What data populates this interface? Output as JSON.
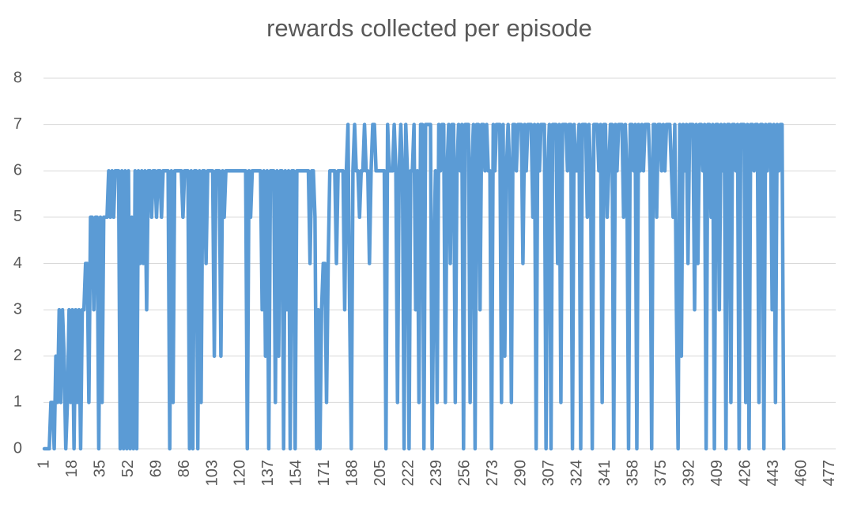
{
  "chart_data": {
    "type": "line",
    "title": "rewards collected per episode",
    "categories": [
      "1",
      null,
      null,
      null,
      null,
      null,
      null,
      null,
      null,
      null,
      null,
      null,
      null,
      null,
      null,
      null,
      null,
      "18",
      null,
      null,
      null,
      null,
      null,
      null,
      null,
      null,
      null,
      null,
      null,
      null,
      null,
      null,
      null,
      null,
      "35",
      null,
      null,
      null,
      null,
      null,
      null,
      null,
      null,
      null,
      null,
      null,
      null,
      null,
      null,
      null,
      null,
      "52",
      null,
      null,
      null,
      null,
      null,
      null,
      null,
      null,
      null,
      null,
      null,
      null,
      null,
      null,
      null,
      null,
      "69",
      null,
      null,
      null,
      null,
      null,
      null,
      null,
      null,
      null,
      null,
      null,
      null,
      null,
      null,
      null,
      null,
      "86",
      null,
      null,
      null,
      null,
      null,
      null,
      null,
      null,
      null,
      null,
      null,
      null,
      null,
      null,
      null,
      null,
      "103",
      null,
      null,
      null,
      null,
      null,
      null,
      null,
      null,
      null,
      null,
      null,
      null,
      null,
      null,
      null,
      null,
      "120",
      null,
      null,
      null,
      null,
      null,
      null,
      null,
      null,
      null,
      null,
      null,
      null,
      null,
      null,
      null,
      null,
      "137",
      null,
      null,
      null,
      null,
      null,
      null,
      null,
      null,
      null,
      null,
      null,
      null,
      null,
      null,
      null,
      null,
      "154",
      null,
      null,
      null,
      null,
      null,
      null,
      null,
      null,
      null,
      null,
      null,
      null,
      null,
      null,
      null,
      null,
      "171",
      null,
      null,
      null,
      null,
      null,
      null,
      null,
      null,
      null,
      null,
      null,
      null,
      null,
      null,
      null,
      null,
      "188",
      null,
      null,
      null,
      null,
      null,
      null,
      null,
      null,
      null,
      null,
      null,
      null,
      null,
      null,
      null,
      null,
      "205",
      null,
      null,
      null,
      null,
      null,
      null,
      null,
      null,
      null,
      null,
      null,
      null,
      null,
      null,
      null,
      null,
      "222",
      null,
      null,
      null,
      null,
      null,
      null,
      null,
      null,
      null,
      null,
      null,
      null,
      null,
      null,
      null,
      null,
      "239",
      null,
      null,
      null,
      null,
      null,
      null,
      null,
      null,
      null,
      null,
      null,
      null,
      null,
      null,
      null,
      null,
      "256",
      null,
      null,
      null,
      null,
      null,
      null,
      null,
      null,
      null,
      null,
      null,
      null,
      null,
      null,
      null,
      null,
      "273",
      null,
      null,
      null,
      null,
      null,
      null,
      null,
      null,
      null,
      null,
      null,
      null,
      null,
      null,
      null,
      null,
      "290",
      null,
      null,
      null,
      null,
      null,
      null,
      null,
      null,
      null,
      null,
      null,
      null,
      null,
      null,
      null,
      null,
      "307",
      null,
      null,
      null,
      null,
      null,
      null,
      null,
      null,
      null,
      null,
      null,
      null,
      null,
      null,
      null,
      null,
      "324",
      null,
      null,
      null,
      null,
      null,
      null,
      null,
      null,
      null,
      null,
      null,
      null,
      null,
      null,
      null,
      null,
      "341",
      null,
      null,
      null,
      null,
      null,
      null,
      null,
      null,
      null,
      null,
      null,
      null,
      null,
      null,
      null,
      null,
      "358",
      null,
      null,
      null,
      null,
      null,
      null,
      null,
      null,
      null,
      null,
      null,
      null,
      null,
      null,
      null,
      null,
      "375",
      null,
      null,
      null,
      null,
      null,
      null,
      null,
      null,
      null,
      null,
      null,
      null,
      null,
      null,
      null,
      null,
      "392",
      null,
      null,
      null,
      null,
      null,
      null,
      null,
      null,
      null,
      null,
      null,
      null,
      null,
      null,
      null,
      null,
      "409",
      null,
      null,
      null,
      null,
      null,
      null,
      null,
      null,
      null,
      null,
      null,
      null,
      null,
      null,
      null,
      null,
      "426",
      null,
      null,
      null,
      null,
      null,
      null,
      null,
      null,
      null,
      null,
      null,
      null,
      null,
      null,
      null,
      null,
      "443",
      null,
      null,
      null,
      null,
      null,
      null,
      null,
      null,
      null,
      null,
      null,
      null,
      null,
      null,
      null,
      null,
      "460",
      null,
      null,
      null,
      null,
      null,
      null,
      null,
      null,
      null,
      null,
      null,
      null,
      null,
      null,
      null,
      null,
      "477",
      null,
      null,
      null
    ],
    "values": [
      0,
      0,
      0,
      0,
      1,
      1,
      0,
      2,
      1,
      3,
      1,
      3,
      2,
      0,
      1,
      3,
      1,
      3,
      0,
      3,
      1,
      3,
      0,
      3,
      3,
      4,
      4,
      1,
      5,
      5,
      3,
      5,
      5,
      0,
      5,
      1,
      5,
      5,
      5,
      6,
      5,
      6,
      5,
      6,
      6,
      6,
      0,
      6,
      0,
      6,
      0,
      6,
      0,
      5,
      0,
      6,
      0,
      6,
      4,
      6,
      4,
      6,
      3,
      6,
      6,
      5,
      6,
      6,
      5,
      6,
      6,
      5,
      6,
      6,
      6,
      6,
      0,
      6,
      1,
      6,
      6,
      6,
      6,
      6,
      5,
      6,
      6,
      6,
      0,
      6,
      0,
      6,
      6,
      0,
      6,
      1,
      6,
      6,
      4,
      6,
      6,
      6,
      6,
      2,
      6,
      6,
      6,
      2,
      6,
      5,
      6,
      6,
      6,
      6,
      6,
      6,
      6,
      6,
      6,
      6,
      6,
      6,
      6,
      0,
      6,
      5,
      6,
      6,
      6,
      6,
      6,
      6,
      3,
      6,
      2,
      6,
      0,
      6,
      6,
      6,
      1,
      6,
      2,
      6,
      6,
      0,
      6,
      3,
      6,
      0,
      6,
      6,
      0,
      6,
      6,
      6,
      6,
      6,
      6,
      6,
      6,
      4,
      6,
      6,
      5,
      0,
      3,
      0,
      3,
      4,
      4,
      1,
      4,
      6,
      6,
      6,
      6,
      4,
      6,
      6,
      6,
      6,
      3,
      6,
      7,
      3,
      0,
      6,
      7,
      6,
      6,
      5,
      6,
      6,
      7,
      6,
      6,
      4,
      6,
      7,
      7,
      6,
      6,
      6,
      6,
      6,
      6,
      0,
      7,
      6,
      6,
      6,
      7,
      6,
      1,
      6,
      7,
      6,
      0,
      7,
      6,
      0,
      6,
      6,
      7,
      3,
      6,
      1,
      7,
      7,
      0,
      7,
      7,
      7,
      7,
      0,
      4,
      6,
      1,
      7,
      6,
      7,
      7,
      1,
      6,
      7,
      4,
      7,
      7,
      1,
      6,
      7,
      6,
      7,
      0,
      7,
      7,
      7,
      1,
      6,
      7,
      0,
      7,
      7,
      3,
      7,
      7,
      6,
      7,
      6,
      6,
      0,
      7,
      6,
      7,
      7,
      7,
      1,
      7,
      2,
      6,
      7,
      6,
      1,
      7,
      7,
      6,
      7,
      7,
      7,
      4,
      7,
      6,
      7,
      7,
      7,
      5,
      7,
      0,
      7,
      6,
      7,
      7,
      7,
      0,
      6,
      7,
      0,
      7,
      7,
      7,
      4,
      7,
      1,
      7,
      7,
      7,
      6,
      7,
      7,
      0,
      7,
      6,
      6,
      7,
      0,
      7,
      7,
      7,
      5,
      7,
      6,
      0,
      7,
      7,
      7,
      6,
      7,
      1,
      7,
      7,
      5,
      6,
      7,
      7,
      0,
      7,
      6,
      7,
      7,
      7,
      5,
      7,
      6,
      0,
      7,
      7,
      6,
      7,
      0,
      7,
      6,
      7,
      6,
      7,
      7,
      7,
      6,
      0,
      7,
      7,
      5,
      7,
      7,
      6,
      7,
      6,
      7,
      7,
      7,
      6,
      5,
      7,
      3,
      0,
      7,
      2,
      7,
      6,
      7,
      4,
      7,
      7,
      7,
      3,
      7,
      4,
      7,
      7,
      6,
      7,
      0,
      7,
      7,
      5,
      7,
      0,
      7,
      7,
      3,
      7,
      6,
      7,
      0,
      7,
      7,
      1,
      7,
      7,
      6,
      7,
      0,
      7,
      7,
      7,
      1,
      7,
      0,
      7,
      7,
      6,
      7,
      7,
      1,
      7,
      7,
      0,
      7,
      6,
      7,
      7,
      3,
      7,
      1,
      7,
      6,
      7,
      7,
      0,
      null,
      null,
      null,
      null,
      null,
      null,
      null,
      null,
      null,
      null,
      null,
      null,
      null,
      null,
      null,
      null,
      null,
      null,
      null,
      null,
      null,
      null,
      null,
      null,
      null,
      null,
      null,
      null,
      null,
      null,
      null
    ],
    "color": "#5b9bd5",
    "ylim": [
      0,
      8
    ],
    "yticks": [
      0,
      1,
      2,
      3,
      4,
      5,
      6,
      7,
      8
    ],
    "grid": true
  }
}
